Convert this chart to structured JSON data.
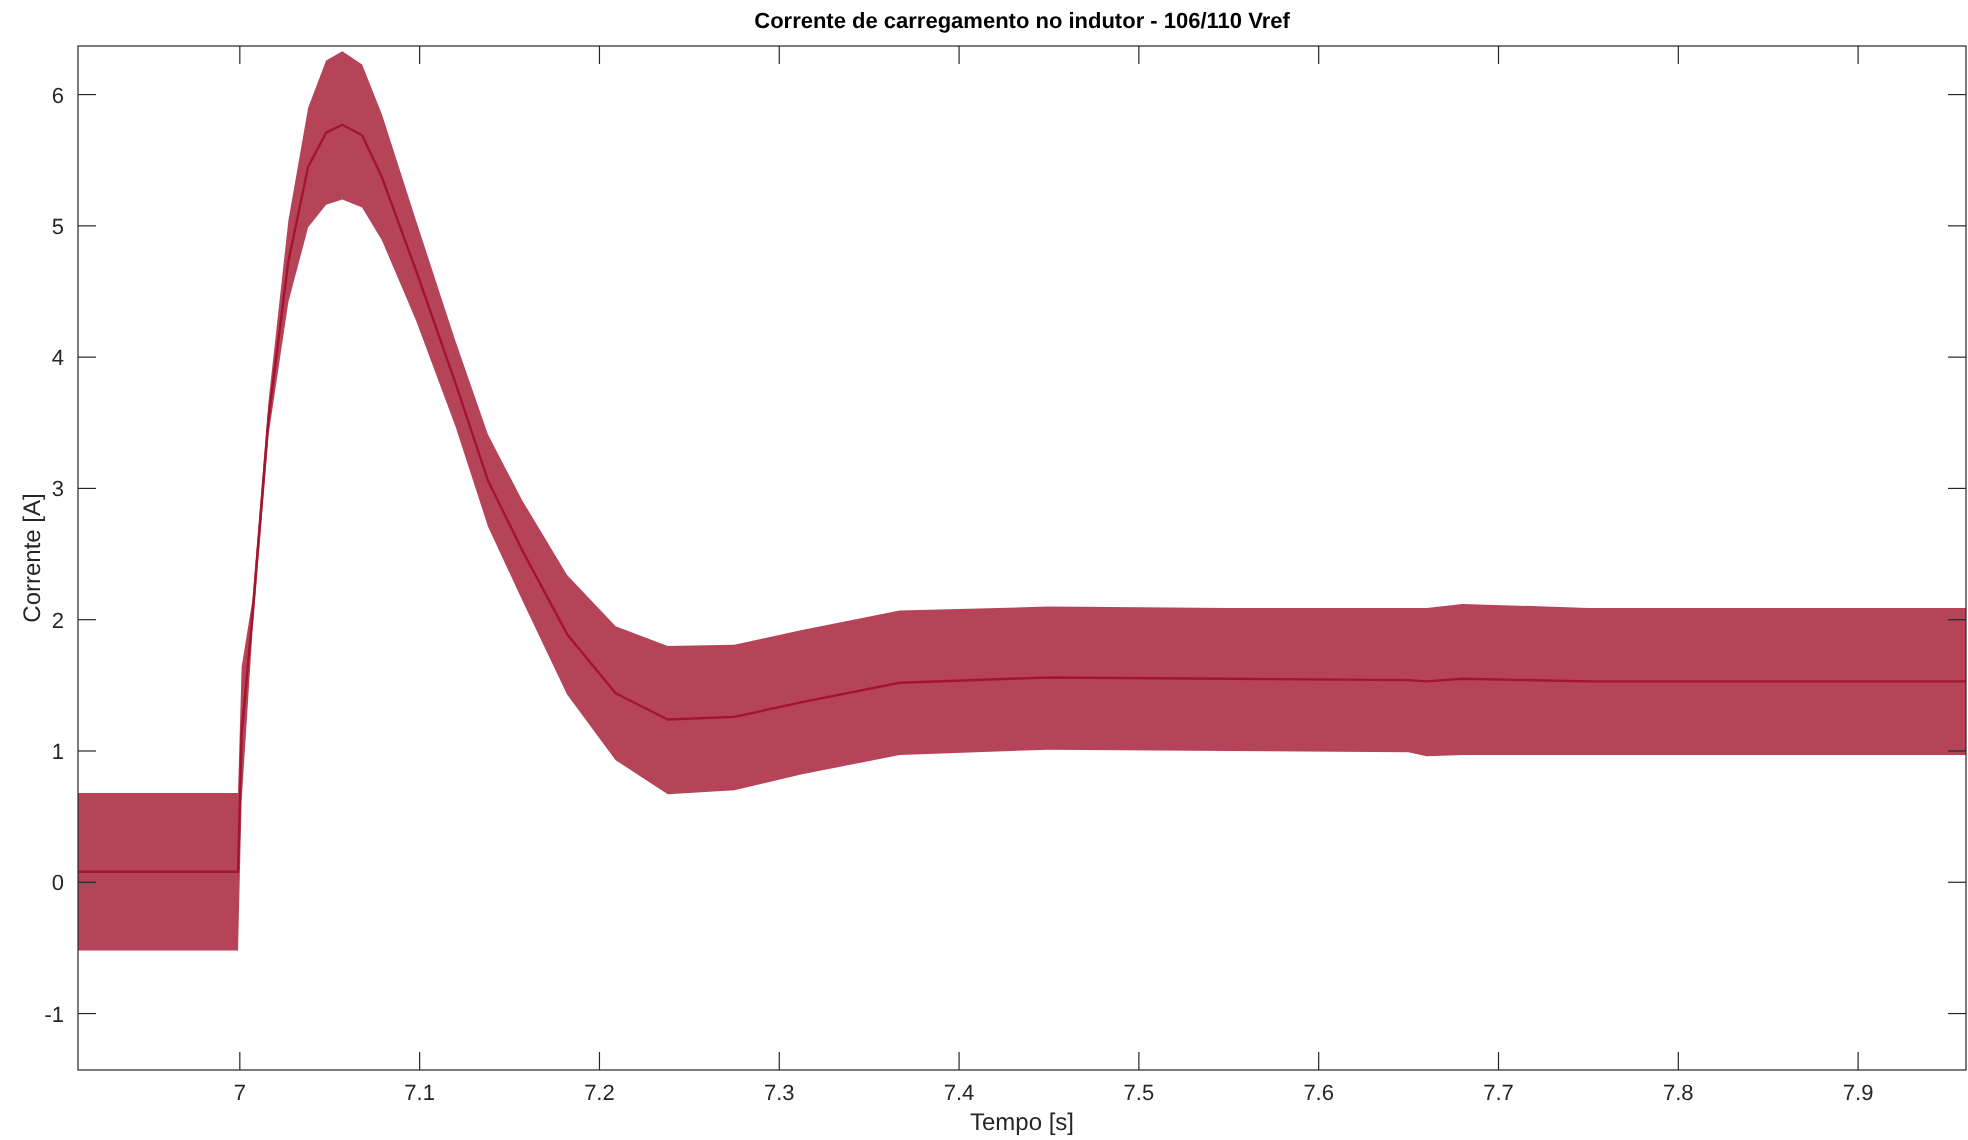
{
  "chart_data": {
    "type": "line",
    "title": "Corrente de carregamento no indutor - 106/110 Vref",
    "xlabel": "Tempo [s]",
    "ylabel": "Corrente [A]",
    "xlim": [
      6.91,
      7.96
    ],
    "xticks": [
      7,
      7.1,
      7.2,
      7.3,
      7.4,
      7.5,
      7.6,
      7.7,
      7.8,
      7.9
    ],
    "ylim": [
      -1.43,
      6.37
    ],
    "yticks": [
      -1,
      0,
      1,
      2,
      3,
      4,
      5,
      6
    ],
    "series": [
      {
        "color": "#a3152f",
        "x": [
          6.91,
          6.999,
          7.001,
          7.007,
          7.016,
          7.027,
          7.038,
          7.048,
          7.057,
          7.068,
          7.079,
          7.098,
          7.12,
          7.138,
          7.157,
          7.182,
          7.209,
          7.238,
          7.275,
          7.312,
          7.367,
          7.45,
          7.55,
          7.65,
          7.66,
          7.68,
          7.75,
          7.96
        ],
        "values": [
          0.08,
          0.08,
          1.13,
          2.03,
          3.54,
          4.73,
          5.45,
          5.71,
          5.77,
          5.69,
          5.37,
          4.66,
          3.8,
          3.06,
          2.53,
          1.89,
          1.44,
          1.24,
          1.26,
          1.37,
          1.52,
          1.56,
          1.55,
          1.54,
          1.53,
          1.55,
          1.53,
          1.53
        ],
        "lower": [
          -0.52,
          -0.52,
          0.62,
          1.9,
          3.41,
          4.42,
          4.99,
          5.16,
          5.2,
          5.14,
          4.89,
          4.28,
          3.47,
          2.71,
          2.15,
          1.43,
          0.93,
          0.67,
          0.7,
          0.82,
          0.97,
          1.01,
          1.0,
          0.99,
          0.96,
          0.97,
          0.97,
          0.97
        ],
        "upper": [
          0.68,
          0.68,
          1.64,
          2.15,
          3.67,
          5.04,
          5.9,
          6.26,
          6.33,
          6.23,
          5.85,
          5.04,
          4.12,
          3.41,
          2.91,
          2.34,
          1.95,
          1.8,
          1.81,
          1.92,
          2.07,
          2.1,
          2.09,
          2.09,
          2.09,
          2.12,
          2.09,
          2.09
        ]
      }
    ]
  }
}
